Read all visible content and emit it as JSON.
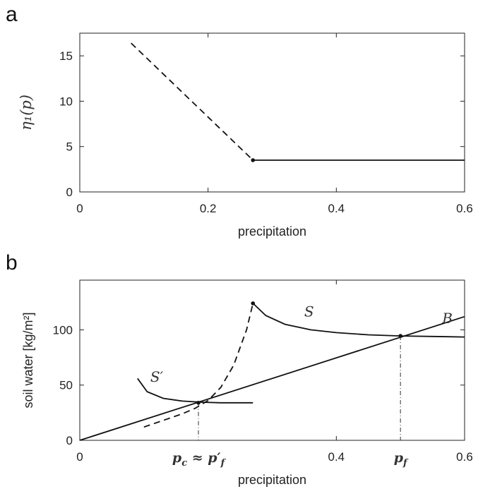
{
  "chart_data": [
    {
      "panel": "a",
      "type": "line",
      "xlabel": "precipitation",
      "ylabel": "η₁(p)",
      "xlim": [
        0,
        0.6
      ],
      "ylim": [
        0,
        17.5
      ],
      "xticks": [
        "0",
        "0.2",
        "0.4",
        "0.6"
      ],
      "yticks": [
        "0",
        "5",
        "10",
        "15"
      ],
      "grid": false,
      "series": [
        {
          "style": "dashed",
          "x": [
            0.08,
            0.27
          ],
          "y": [
            16.4,
            3.5
          ]
        },
        {
          "style": "solid",
          "x": [
            0.27,
            0.6
          ],
          "y": [
            3.5,
            3.5
          ]
        }
      ],
      "points": [
        {
          "x": 0.27,
          "y": 3.5
        }
      ]
    },
    {
      "panel": "b",
      "type": "line",
      "xlabel": "precipitation",
      "ylabel": "soil water [kg/m²]",
      "xlim": [
        0,
        0.6
      ],
      "ylim": [
        0,
        145
      ],
      "xticks": [
        "0",
        "0.4",
        "0.6"
      ],
      "xtick_math": [
        "p_c ≈ p′_f",
        "p_f"
      ],
      "yticks": [
        "0",
        "50",
        "100"
      ],
      "grid": false,
      "series": [
        {
          "name": "S",
          "style": "solid",
          "x": [
            0.27,
            0.29,
            0.32,
            0.36,
            0.4,
            0.45,
            0.5,
            0.55,
            0.6
          ],
          "y": [
            124,
            113,
            105,
            100,
            97.5,
            95.5,
            94.5,
            94,
            93.5
          ]
        },
        {
          "name": "S′",
          "style": "solid",
          "x": [
            0.09,
            0.105,
            0.13,
            0.16,
            0.19,
            0.22,
            0.25,
            0.27
          ],
          "y": [
            56,
            44,
            38,
            35.5,
            34.5,
            34,
            34,
            34
          ]
        },
        {
          "style": "dashed",
          "x": [
            0.1,
            0.13,
            0.16,
            0.18,
            0.2,
            0.22,
            0.24,
            0.26,
            0.27
          ],
          "y": [
            12,
            18,
            24,
            29,
            36,
            48,
            68,
            100,
            124
          ]
        },
        {
          "name": "B",
          "style": "solid",
          "x": [
            0,
            0.6
          ],
          "y": [
            0,
            112
          ]
        }
      ],
      "points": [
        {
          "x": 0.27,
          "y": 124
        },
        {
          "x": 0.185,
          "y": 34
        },
        {
          "x": 0.5,
          "y": 94.5
        }
      ],
      "vlines": [
        {
          "x": 0.185,
          "y": 34
        },
        {
          "x": 0.5,
          "y": 94.5
        }
      ],
      "labels": [
        {
          "text": "S",
          "x": 0.35,
          "y": 112
        },
        {
          "text": "S′",
          "x": 0.11,
          "y": 53
        },
        {
          "text": "B",
          "x": 0.565,
          "y": 106
        }
      ]
    }
  ]
}
